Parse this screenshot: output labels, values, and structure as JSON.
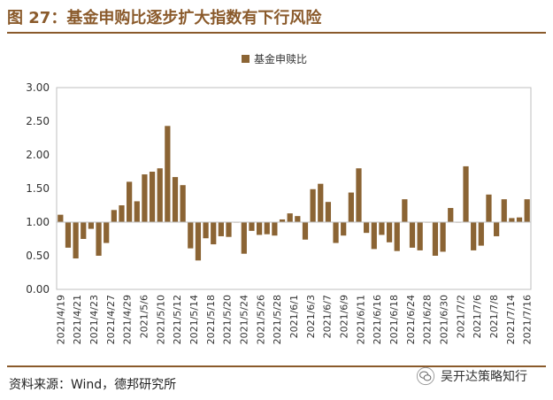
{
  "figure": {
    "title": "图 27：基金申购比逐步扩大指数有下行风险",
    "source": "资料来源：Wind，德邦研究所",
    "watermark": "吴开达策略知行",
    "watermark_icon": "wechat-icon",
    "accent_color": "#8a5a2b",
    "bar_color": "#8b6434"
  },
  "chart_data": {
    "type": "bar",
    "legend": "基金申赎比",
    "legend_position": "top-center",
    "baseline": 1.0,
    "ylim": [
      0,
      3
    ],
    "yticks": [
      "0.00",
      "0.50",
      "1.00",
      "1.50",
      "2.00",
      "2.50",
      "3.00"
    ],
    "xtick_labels": [
      "2021/4/19",
      "2021/4/21",
      "2021/4/23",
      "2021/4/27",
      "2021/4/29",
      "2021/5/6",
      "2021/5/10",
      "2021/5/12",
      "2021/5/14",
      "2021/5/18",
      "2021/5/20",
      "2021/5/24",
      "2021/5/26",
      "2021/5/28",
      "2021/6/1",
      "2021/6/3",
      "2021/6/7",
      "2021/6/9",
      "2021/6/11",
      "2021/6/16",
      "2021/6/18",
      "2021/6/24",
      "2021/6/28",
      "2021/6/30",
      "2021/7/2",
      "2021/7/6",
      "2021/7/8",
      "2021/7/14",
      "2021/7/16"
    ],
    "values": [
      1.11,
      0.62,
      0.46,
      0.75,
      0.9,
      0.5,
      0.69,
      1.18,
      1.25,
      1.6,
      1.31,
      1.71,
      1.75,
      1.8,
      2.43,
      1.67,
      1.55,
      0.61,
      0.43,
      0.76,
      0.67,
      0.79,
      0.78,
      1.0,
      0.53,
      0.87,
      0.81,
      0.82,
      0.8,
      1.04,
      1.13,
      1.09,
      0.74,
      1.49,
      1.57,
      1.3,
      0.69,
      0.8,
      1.44,
      1.8,
      0.84,
      0.6,
      0.81,
      0.7,
      0.57,
      1.34,
      0.62,
      0.58,
      1.0,
      0.5,
      0.56,
      1.21,
      1.0,
      1.83,
      0.58,
      0.65,
      1.41,
      0.79,
      1.34,
      1.06,
      1.07,
      1.34
    ],
    "grid": false
  }
}
